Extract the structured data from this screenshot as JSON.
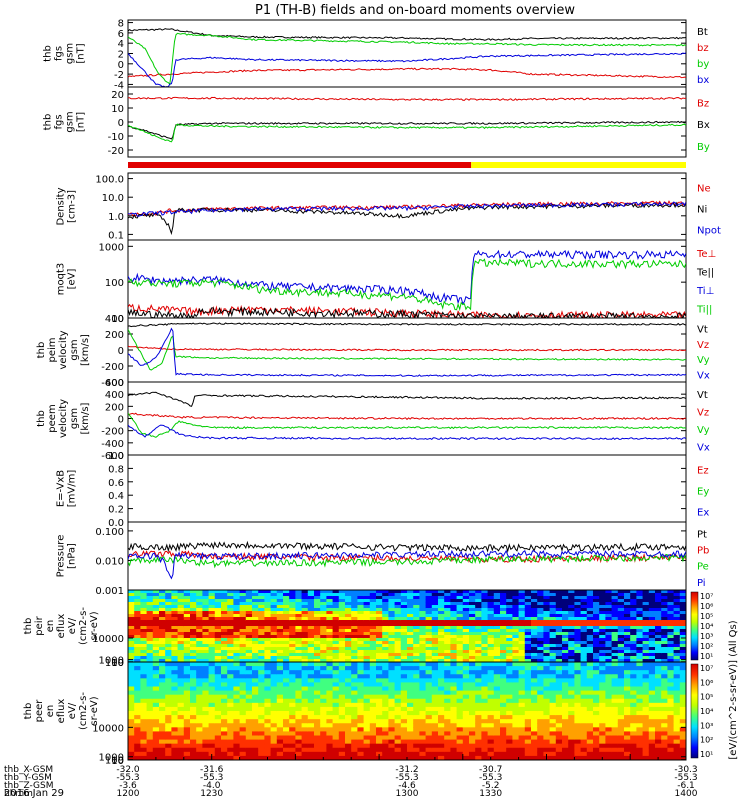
{
  "title": "P1 (TH-B) fields and on-board moments overview",
  "date_label": "2016 Jan 29",
  "colors": {
    "black": "#000000",
    "red": "#e00000",
    "green": "#00cc00",
    "blue": "#0000dd",
    "yellow": "#ffff00"
  },
  "chart_data": [
    {
      "type": "line",
      "ylabel": [
        "thb",
        "fgs",
        "gsm",
        "[nT]"
      ],
      "yticks": [
        8,
        6,
        4,
        2,
        0,
        -2,
        -4
      ],
      "ylim": [
        -4.5,
        8.5
      ],
      "legend": [
        {
          "text": "Bt",
          "color": "black"
        },
        {
          "text": "bz",
          "color": "red"
        },
        {
          "text": "by",
          "color": "green"
        },
        {
          "text": "bx",
          "color": "blue"
        }
      ],
      "series": [
        {
          "name": "Bt",
          "color": "black",
          "x": [
            1200,
            1215,
            1230,
            1245,
            1300,
            1315,
            1330,
            1345,
            1400
          ],
          "y": [
            6.5,
            6.7,
            5.5,
            5.2,
            5.0,
            4.8,
            4.7,
            4.9,
            5.0
          ]
        },
        {
          "name": "bz",
          "color": "red",
          "x": [
            1200,
            1215,
            1230,
            1245,
            1300,
            1315,
            1330,
            1345,
            1400
          ],
          "y": [
            -2.5,
            -2.0,
            -1.6,
            -1.3,
            -1.0,
            -1.0,
            -1.2,
            -2.0,
            -2.6
          ]
        },
        {
          "name": "by",
          "color": "green",
          "x": [
            1200,
            1206,
            1211,
            1215,
            1217,
            1230,
            1245,
            1300,
            1315,
            1330,
            1345,
            1400
          ],
          "y": [
            5.2,
            3.0,
            -2.0,
            -4.0,
            5.8,
            5.5,
            4.7,
            4.2,
            3.9,
            3.9,
            3.7,
            3.6
          ]
        },
        {
          "name": "bx",
          "color": "blue",
          "x": [
            1200,
            1206,
            1210,
            1214,
            1216,
            1217,
            1230,
            1245,
            1300,
            1315,
            1330,
            1345,
            1400
          ],
          "y": [
            2.0,
            -1.5,
            -4.0,
            -4.6,
            -3.5,
            0.8,
            1.2,
            0.8,
            0.5,
            1.0,
            1.5,
            1.6,
            2.0
          ]
        }
      ]
    },
    {
      "type": "line",
      "ylabel": [
        "thb",
        "fgs",
        "gsm",
        "[nT]"
      ],
      "yticks": [
        20,
        10,
        0,
        -10,
        -20
      ],
      "ylim": [
        -25,
        25
      ],
      "legend": [
        {
          "text": "Bz",
          "color": "red"
        },
        {
          "text": "Bx",
          "color": "black"
        },
        {
          "text": "By",
          "color": "green"
        }
      ],
      "series": [
        {
          "name": "Bz",
          "color": "red",
          "x": [
            1200,
            1230,
            1300,
            1330,
            1400
          ],
          "y": [
            17,
            17,
            16,
            16,
            17
          ]
        },
        {
          "name": "Bx",
          "color": "black",
          "x": [
            1200,
            1206,
            1212,
            1216,
            1217,
            1230,
            1300,
            1330,
            1400
          ],
          "y": [
            -3,
            -6,
            -10,
            -12,
            -2,
            -1,
            -1,
            -1,
            0
          ]
        },
        {
          "name": "By",
          "color": "green",
          "x": [
            1200,
            1206,
            1212,
            1216,
            1217,
            1230,
            1300,
            1330,
            1400
          ],
          "y": [
            -2,
            -7,
            -12,
            -14,
            -2,
            -3,
            -4,
            -4,
            -2
          ]
        }
      ]
    },
    {
      "type": "bar",
      "segments": [
        {
          "from": 1200,
          "to": 1323,
          "color": "red"
        },
        {
          "from": 1323,
          "to": 1400,
          "color": "yellow"
        }
      ]
    },
    {
      "type": "line",
      "log": true,
      "ylabel": [
        "Density",
        "[cm-3]"
      ],
      "yticks": [
        {
          "v": 100,
          "t": "100.0"
        },
        {
          "v": 10,
          "t": "10.0"
        },
        {
          "v": 1,
          "t": "1.0"
        },
        {
          "v": 0.1,
          "t": "0.1"
        }
      ],
      "ylim": [
        0.05,
        200
      ],
      "legend": [
        {
          "text": "Ne",
          "color": "red"
        },
        {
          "text": "Ni",
          "color": "black"
        },
        {
          "text": "Npot",
          "color": "blue"
        }
      ],
      "series": [
        {
          "name": "Ne",
          "color": "red",
          "x": [
            1200,
            1210,
            1216,
            1223,
            1224,
            1240,
            1300,
            1330,
            1400
          ],
          "y": [
            1.2,
            1.4,
            2.0,
            2.0,
            2.2,
            2.5,
            3.0,
            4.0,
            5.0
          ]
        },
        {
          "name": "Ni",
          "color": "black",
          "x": [
            1200,
            1210,
            1216,
            1217,
            1240,
            1300,
            1330,
            1400
          ],
          "y": [
            0.9,
            1.1,
            0.06,
            2.0,
            2.2,
            1.0,
            3.0,
            4.0
          ]
        },
        {
          "name": "Npot",
          "color": "blue",
          "x": [
            1200,
            1240,
            1300,
            1330,
            1400
          ],
          "y": [
            1.1,
            2.3,
            2.6,
            3.5,
            4.5
          ]
        }
      ]
    },
    {
      "type": "line",
      "log": true,
      "ylabel": [
        "moqt3",
        "[eV]"
      ],
      "yticks": [
        {
          "v": 1000,
          "t": "1000"
        },
        {
          "v": 100,
          "t": "100"
        },
        {
          "v": 10,
          "t": "10"
        }
      ],
      "ylim": [
        10,
        1500
      ],
      "legend": [
        {
          "text": "Te⊥",
          "color": "red"
        },
        {
          "text": "Te||",
          "color": "black"
        },
        {
          "text": "Ti⊥",
          "color": "blue"
        },
        {
          "text": "Ti||",
          "color": "green"
        }
      ],
      "series": [
        {
          "name": "Te⊥",
          "color": "red",
          "x": [
            1200,
            1215,
            1225,
            1240,
            1300,
            1323,
            1324,
            1400
          ],
          "y": [
            20,
            17,
            15,
            18,
            14,
            12,
            12,
            12
          ]
        },
        {
          "name": "Te||",
          "color": "black",
          "x": [
            1200,
            1215,
            1224,
            1225,
            1300,
            1323,
            1324,
            1400
          ],
          "y": [
            14,
            12,
            11,
            16,
            13,
            11,
            11,
            11
          ]
        },
        {
          "name": "Ti⊥",
          "color": "blue",
          "x": [
            1200,
            1212,
            1230,
            1250,
            1300,
            1310,
            1323,
            1324,
            1400
          ],
          "y": [
            140,
            110,
            120,
            80,
            60,
            40,
            30,
            600,
            600
          ]
        },
        {
          "name": "Ti||",
          "color": "green",
          "x": [
            1200,
            1212,
            1230,
            1250,
            1300,
            1310,
            1323,
            1324,
            1400
          ],
          "y": [
            110,
            90,
            100,
            60,
            40,
            25,
            20,
            350,
            320
          ]
        }
      ]
    },
    {
      "type": "line",
      "ylabel": [
        "thb",
        "peim",
        "velocity",
        "gsm",
        "[km/s]"
      ],
      "yticks": [
        400,
        200,
        0,
        -200,
        -400
      ],
      "ylim": [
        -400,
        400
      ],
      "legend": [
        {
          "text": "Vt",
          "color": "black"
        },
        {
          "text": "Vz",
          "color": "red"
        },
        {
          "text": "Vy",
          "color": "green"
        },
        {
          "text": "Vx",
          "color": "blue"
        }
      ],
      "series": [
        {
          "name": "Vt",
          "color": "black",
          "x": [
            1200,
            1215,
            1217,
            1230,
            1300,
            1330,
            1400
          ],
          "y": [
            300,
            320,
            330,
            330,
            320,
            320,
            320
          ]
        },
        {
          "name": "Vz",
          "color": "red",
          "x": [
            1200,
            1210,
            1217,
            1300,
            1400
          ],
          "y": [
            40,
            20,
            10,
            0,
            0
          ]
        },
        {
          "name": "Vy",
          "color": "green",
          "x": [
            1200,
            1204,
            1208,
            1212,
            1216,
            1217,
            1230,
            1300,
            1400
          ],
          "y": [
            250,
            0,
            -250,
            -180,
            200,
            -80,
            -100,
            -110,
            -120
          ]
        },
        {
          "name": "Vx",
          "color": "blue",
          "x": [
            1200,
            1205,
            1210,
            1214,
            1216,
            1217,
            1230,
            1300,
            1400
          ],
          "y": [
            -50,
            -200,
            -100,
            150,
            300,
            -300,
            -310,
            -320,
            -310
          ]
        }
      ]
    },
    {
      "type": "line",
      "ylabel": [
        "thb",
        "peem",
        "velocity",
        "gsm",
        "[km/s]"
      ],
      "yticks": [
        600,
        400,
        200,
        0,
        -200,
        -400,
        -600
      ],
      "ylim": [
        -600,
        600
      ],
      "legend": [
        {
          "text": "Vt",
          "color": "black"
        },
        {
          "text": "Vz",
          "color": "red"
        },
        {
          "text": "Vy",
          "color": "green"
        },
        {
          "text": "Vx",
          "color": "blue"
        }
      ],
      "series": [
        {
          "name": "Vt",
          "color": "black",
          "x": [
            1200,
            1210,
            1218,
            1223,
            1224,
            1300,
            1330,
            1400
          ],
          "y": [
            380,
            430,
            300,
            200,
            380,
            350,
            330,
            340
          ]
        },
        {
          "name": "Vz",
          "color": "red",
          "x": [
            1200,
            1210,
            1220,
            1300,
            1400
          ],
          "y": [
            80,
            50,
            20,
            0,
            0
          ]
        },
        {
          "name": "Vy",
          "color": "green",
          "x": [
            1200,
            1205,
            1210,
            1215,
            1218,
            1223,
            1230,
            1300,
            1400
          ],
          "y": [
            100,
            -250,
            -300,
            -200,
            -50,
            -100,
            -150,
            -150,
            -150
          ]
        },
        {
          "name": "Vx",
          "color": "blue",
          "x": [
            1200,
            1206,
            1212,
            1218,
            1223,
            1230,
            1300,
            1400
          ],
          "y": [
            -120,
            -300,
            -100,
            -250,
            -300,
            -320,
            -330,
            -330
          ]
        }
      ]
    },
    {
      "type": "line",
      "ylabel": [
        "E=-VxB",
        "[mV/m]"
      ],
      "yticks": [
        {
          "v": 1.0,
          "t": "1.0"
        },
        {
          "v": 0.8,
          "t": "0.8"
        },
        {
          "v": 0.6,
          "t": "0.6"
        },
        {
          "v": 0.4,
          "t": "0.4"
        },
        {
          "v": 0.2,
          "t": "0.2"
        },
        {
          "v": 0,
          "t": "0.0"
        }
      ],
      "ylim": [
        0,
        1
      ],
      "legend": [
        {
          "text": "Ez",
          "color": "red"
        },
        {
          "text": "Ey",
          "color": "green"
        },
        {
          "text": "Ex",
          "color": "blue"
        }
      ],
      "series": []
    },
    {
      "type": "line",
      "log": true,
      "ylabel": [
        "Pressure",
        "[nPa]"
      ],
      "yticks": [
        {
          "v": 0.1,
          "t": "0.100"
        },
        {
          "v": 0.01,
          "t": "0.010"
        },
        {
          "v": 0.001,
          "t": "0.001"
        }
      ],
      "ylim": [
        0.001,
        0.2
      ],
      "legend": [
        {
          "text": "Pt",
          "color": "black"
        },
        {
          "text": "Pb",
          "color": "red"
        },
        {
          "text": "Pe",
          "color": "green"
        },
        {
          "text": "Pi",
          "color": "blue"
        }
      ],
      "series": [
        {
          "name": "Pt",
          "color": "black",
          "x": [
            1200,
            1215,
            1230,
            1300,
            1330,
            1400
          ],
          "y": [
            0.03,
            0.028,
            0.035,
            0.028,
            0.027,
            0.03
          ]
        },
        {
          "name": "Pb",
          "color": "red",
          "x": [
            1200,
            1215,
            1230,
            1300,
            1330,
            1400
          ],
          "y": [
            0.016,
            0.018,
            0.014,
            0.012,
            0.011,
            0.013
          ]
        },
        {
          "name": "Pe",
          "color": "green",
          "x": [
            1200,
            1215,
            1230,
            1300,
            1330,
            1400
          ],
          "y": [
            0.009,
            0.011,
            0.008,
            0.009,
            0.011,
            0.013
          ]
        },
        {
          "name": "Pi",
          "color": "blue",
          "x": [
            1200,
            1210,
            1216,
            1217,
            1230,
            1300,
            1330,
            1400
          ],
          "y": [
            0.013,
            0.015,
            0.0012,
            0.015,
            0.014,
            0.016,
            0.017,
            0.017
          ]
        }
      ]
    },
    {
      "type": "heatmap",
      "ylabel": [
        "thb",
        "peir",
        "en",
        "eflux",
        "eV/",
        "(cm2-s-",
        "sr-eV)"
      ],
      "yticks": [
        {
          "v": 10000,
          "t": "10000"
        },
        {
          "v": 1000,
          "t": "1000"
        },
        {
          "v": 100,
          "t": "100"
        },
        {
          "v": 10,
          "t": "10"
        }
      ],
      "ylim": [
        5,
        30000
      ],
      "kind": "ion"
    },
    {
      "type": "heatmap",
      "ylabel": [
        "thb",
        "peer",
        "en",
        "eflux",
        "eV/",
        "(cm2-s-",
        "sr-eV)"
      ],
      "yticks": [
        {
          "v": 10000,
          "t": "10000"
        },
        {
          "v": 1000,
          "t": "1000"
        },
        {
          "v": 100,
          "t": "100"
        },
        {
          "v": 10,
          "t": "10"
        }
      ],
      "ylim": [
        5,
        30000
      ],
      "kind": "electron"
    }
  ],
  "colorbar": {
    "ticks": [
      "10⁷",
      "10⁶",
      "10⁵",
      "10⁴",
      "10³",
      "10²",
      "10¹"
    ],
    "label": "[eV/(cm^2-s-sr-eV)] (All Qs)"
  },
  "xaxis": {
    "times": [
      1200,
      1230,
      1300,
      1330,
      1400
    ],
    "rows": [
      {
        "label": "thb_X-GSM",
        "values": [
          "-32.0",
          "-31.6",
          "-31.2",
          "-30.7",
          "-30.3"
        ]
      },
      {
        "label": "thb_Y-GSM",
        "values": [
          "-55.3",
          "-55.3",
          "-55.3",
          "-55.3",
          "-55.3"
        ]
      },
      {
        "label": "thb_Z-GSM",
        "values": [
          "-3.6",
          "-4.0",
          "-4.6",
          "-5.2",
          "-6.1"
        ]
      },
      {
        "label": "hhmm",
        "values": [
          "1200",
          "1230",
          "1300",
          "1330",
          "1400"
        ]
      }
    ]
  }
}
